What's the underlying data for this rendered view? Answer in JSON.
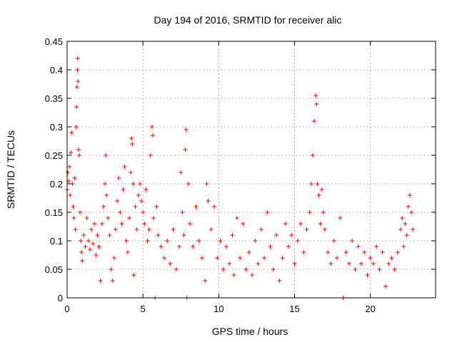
{
  "chart_data": {
    "type": "scatter",
    "title": "Day 194 of 2016, SRMTID for receiver alic",
    "xlabel": "GPS time / hours",
    "ylabel": "SRMTID / TECUs",
    "xlim": [
      0,
      24.3
    ],
    "ylim": [
      0,
      0.45
    ],
    "x_ticks": [
      0,
      5,
      10,
      15,
      20
    ],
    "x_tick_labels": [
      "0",
      "5",
      "10",
      "15",
      "20"
    ],
    "y_ticks": [
      0,
      0.05,
      0.1,
      0.15,
      0.2,
      0.25,
      0.3,
      0.35,
      0.4,
      0.45
    ],
    "y_tick_labels": [
      "0",
      "0.05",
      "0.1",
      "0.15",
      "0.2",
      "0.25",
      "0.3",
      "0.35",
      "0.4",
      "0.45"
    ],
    "grid": true,
    "marker": "plus",
    "color": "#ff0000",
    "series": [
      {
        "name": "SRMTID",
        "points": [
          [
            0.0,
            0.19
          ],
          [
            0.05,
            0.22
          ],
          [
            0.1,
            0.205
          ],
          [
            0.15,
            0.23
          ],
          [
            0.2,
            0.18
          ],
          [
            0.25,
            0.255
          ],
          [
            0.3,
            0.29
          ],
          [
            0.35,
            0.2
          ],
          [
            0.4,
            0.16
          ],
          [
            0.45,
            0.14
          ],
          [
            0.5,
            0.21
          ],
          [
            0.55,
            0.12
          ],
          [
            0.6,
            0.3
          ],
          [
            0.62,
            0.335
          ],
          [
            0.65,
            0.37
          ],
          [
            0.68,
            0.4
          ],
          [
            0.7,
            0.42
          ],
          [
            0.72,
            0.38
          ],
          [
            0.75,
            0.26
          ],
          [
            0.8,
            0.25
          ],
          [
            0.85,
            0.15
          ],
          [
            0.9,
            0.1
          ],
          [
            0.95,
            0.08
          ],
          [
            1.0,
            0.065
          ],
          [
            1.1,
            0.11
          ],
          [
            1.2,
            0.09
          ],
          [
            1.3,
            0.14
          ],
          [
            1.4,
            0.1
          ],
          [
            1.5,
            0.085
          ],
          [
            1.6,
            0.12
          ],
          [
            1.7,
            0.095
          ],
          [
            1.8,
            0.13
          ],
          [
            1.9,
            0.075
          ],
          [
            2.0,
            0.11
          ],
          [
            2.1,
            0.09
          ],
          [
            2.2,
            0.03
          ],
          [
            2.3,
            0.13
          ],
          [
            2.4,
            0.16
          ],
          [
            2.5,
            0.2
          ],
          [
            2.55,
            0.25
          ],
          [
            2.6,
            0.18
          ],
          [
            2.7,
            0.14
          ],
          [
            2.8,
            0.11
          ],
          [
            2.9,
            0.05
          ],
          [
            3.0,
            0.03
          ],
          [
            3.1,
            0.07
          ],
          [
            3.2,
            0.12
          ],
          [
            3.3,
            0.17
          ],
          [
            3.4,
            0.21
          ],
          [
            3.5,
            0.15
          ],
          [
            3.6,
            0.13
          ],
          [
            3.7,
            0.19
          ],
          [
            3.8,
            0.23
          ],
          [
            3.9,
            0.1
          ],
          [
            4.0,
            0.08
          ],
          [
            4.1,
            0.14
          ],
          [
            4.2,
            0.22
          ],
          [
            4.25,
            0.28
          ],
          [
            4.3,
            0.27
          ],
          [
            4.35,
            0.2
          ],
          [
            4.4,
            0.04
          ],
          [
            4.5,
            0.16
          ],
          [
            4.6,
            0.12
          ],
          [
            4.7,
            0.18
          ],
          [
            4.8,
            0.2
          ],
          [
            4.9,
            0.17
          ],
          [
            5.0,
            0.15
          ],
          [
            5.1,
            0.13
          ],
          [
            5.2,
            0.19
          ],
          [
            5.3,
            0.1
          ],
          [
            5.4,
            0.12
          ],
          [
            5.5,
            0.25
          ],
          [
            5.6,
            0.3
          ],
          [
            5.65,
            0.285
          ],
          [
            5.7,
            0.14
          ],
          [
            5.8,
            0.0
          ],
          [
            5.9,
            0.16
          ],
          [
            6.0,
            0.11
          ],
          [
            6.2,
            0.09
          ],
          [
            6.4,
            0.07
          ],
          [
            6.6,
            0.1
          ],
          [
            6.8,
            0.06
          ],
          [
            7.0,
            0.12
          ],
          [
            7.2,
            0.05
          ],
          [
            7.4,
            0.09
          ],
          [
            7.5,
            0.22
          ],
          [
            7.6,
            0.15
          ],
          [
            7.7,
            0.11
          ],
          [
            7.8,
            0.26
          ],
          [
            7.85,
            0.295
          ],
          [
            7.9,
            0.0
          ],
          [
            8.0,
            0.2
          ],
          [
            8.1,
            0.13
          ],
          [
            8.3,
            0.09
          ],
          [
            8.5,
            0.16
          ],
          [
            8.7,
            0.1
          ],
          [
            8.9,
            0.07
          ],
          [
            9.1,
            0.03
          ],
          [
            9.2,
            0.2
          ],
          [
            9.3,
            0.17
          ],
          [
            9.5,
            0.12
          ],
          [
            9.7,
            0.16
          ],
          [
            9.9,
            0.07
          ],
          [
            10.1,
            0.1
          ],
          [
            10.3,
            0.05
          ],
          [
            10.5,
            0.09
          ],
          [
            10.7,
            0.06
          ],
          [
            10.9,
            0.11
          ],
          [
            11.0,
            0.04
          ],
          [
            11.2,
            0.14
          ],
          [
            11.4,
            0.07
          ],
          [
            11.6,
            0.13
          ],
          [
            11.8,
            0.05
          ],
          [
            12.0,
            0.08
          ],
          [
            12.2,
            0.04
          ],
          [
            12.4,
            0.1
          ],
          [
            12.6,
            0.06
          ],
          [
            12.8,
            0.12
          ],
          [
            13.0,
            0.07
          ],
          [
            13.2,
            0.15
          ],
          [
            13.4,
            0.09
          ],
          [
            13.6,
            0.05
          ],
          [
            13.8,
            0.11
          ],
          [
            14.0,
            0.03
          ],
          [
            14.2,
            0.07
          ],
          [
            14.4,
            0.13
          ],
          [
            14.6,
            0.09
          ],
          [
            14.8,
            0.11
          ],
          [
            15.0,
            0.06
          ],
          [
            15.2,
            0.1
          ],
          [
            15.4,
            0.13
          ],
          [
            15.6,
            0.08
          ],
          [
            15.8,
            0.12
          ],
          [
            16.0,
            0.15
          ],
          [
            16.1,
            0.2
          ],
          [
            16.2,
            0.25
          ],
          [
            16.3,
            0.31
          ],
          [
            16.4,
            0.355
          ],
          [
            16.45,
            0.34
          ],
          [
            16.5,
            0.2
          ],
          [
            16.6,
            0.18
          ],
          [
            16.7,
            0.13
          ],
          [
            16.8,
            0.19
          ],
          [
            16.9,
            0.15
          ],
          [
            17.0,
            0.12
          ],
          [
            17.2,
            0.08
          ],
          [
            17.4,
            0.06
          ],
          [
            17.6,
            0.1
          ],
          [
            17.8,
            0.07
          ],
          [
            18.0,
            0.14
          ],
          [
            18.2,
            0.0
          ],
          [
            18.4,
            0.08
          ],
          [
            18.6,
            0.06
          ],
          [
            18.8,
            0.1
          ],
          [
            19.0,
            0.05
          ],
          [
            19.2,
            0.09
          ],
          [
            19.4,
            0.06
          ],
          [
            19.6,
            0.08
          ],
          [
            19.8,
            0.04
          ],
          [
            20.0,
            0.07
          ],
          [
            20.2,
            0.06
          ],
          [
            20.4,
            0.09
          ],
          [
            20.6,
            0.05
          ],
          [
            20.8,
            0.08
          ],
          [
            21.0,
            0.02
          ],
          [
            21.2,
            0.06
          ],
          [
            21.4,
            0.07
          ],
          [
            21.6,
            0.05
          ],
          [
            21.8,
            0.08
          ],
          [
            22.0,
            0.12
          ],
          [
            22.1,
            0.14
          ],
          [
            22.2,
            0.09
          ],
          [
            22.3,
            0.13
          ],
          [
            22.4,
            0.11
          ],
          [
            22.5,
            0.16
          ],
          [
            22.6,
            0.18
          ],
          [
            22.7,
            0.15
          ],
          [
            22.8,
            0.12
          ]
        ]
      }
    ]
  }
}
